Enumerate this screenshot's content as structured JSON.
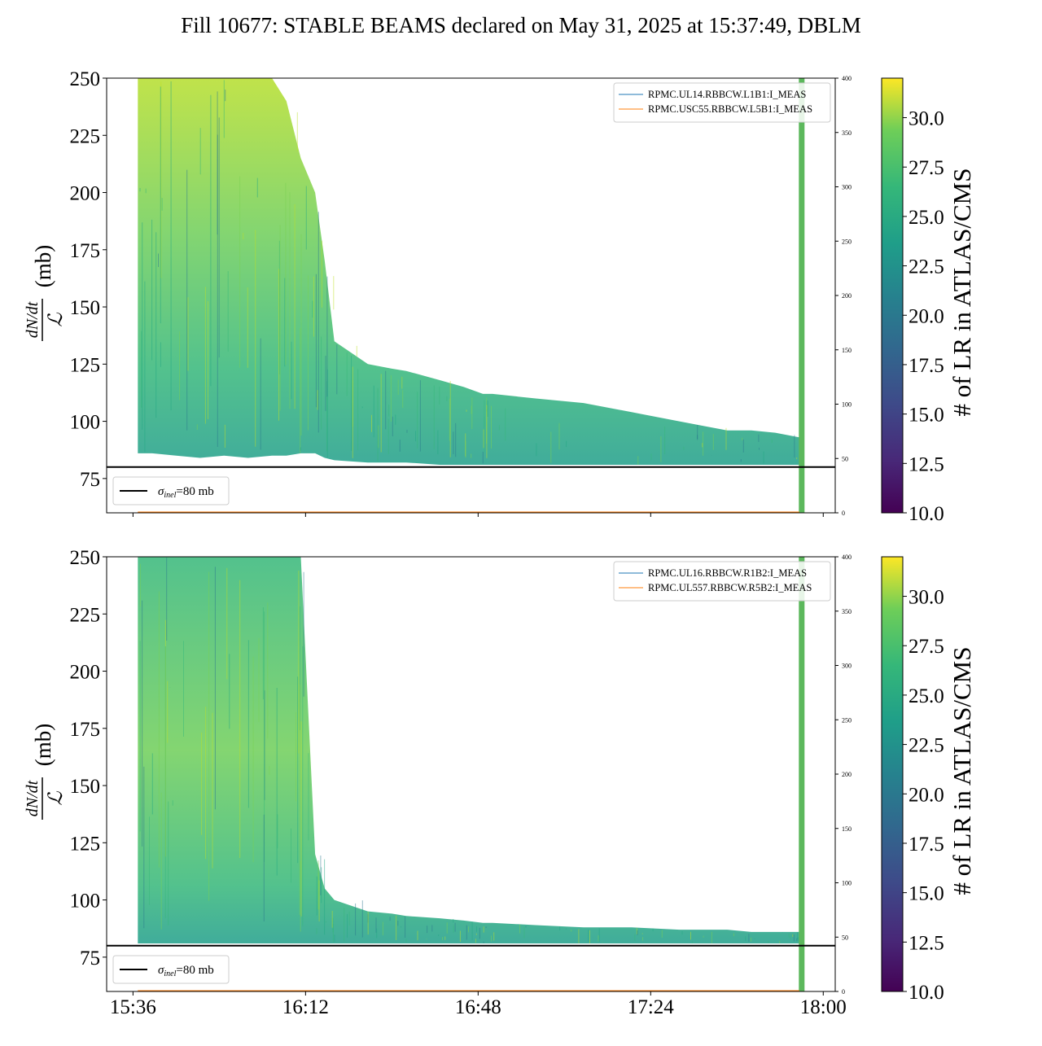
{
  "figure": {
    "title": "Fill 10677: STABLE BEAMS declared on May 31, 2025 at 15:37:49, DBLM"
  },
  "chart_data": [
    {
      "type": "line",
      "title": "",
      "ylabel_numerator": "dN/dt",
      "ylabel_denominator": "ℒ",
      "ylabel_unit": "(mb)",
      "x_ticks": [
        "15:36",
        "16:12",
        "16:48",
        "17:24",
        "18:00"
      ],
      "x_tick_minutes": [
        936,
        972,
        1008,
        1044,
        1080
      ],
      "xlim_minutes": [
        930.5,
        1082.5
      ],
      "tick_labels_shown": false,
      "ylim": [
        60,
        250
      ],
      "y_ticks": [
        75,
        100,
        125,
        150,
        175,
        200,
        225,
        250
      ],
      "y2lim": [
        0,
        400
      ],
      "y2_ticks": [
        0,
        50,
        100,
        150,
        200,
        250,
        300,
        350,
        400
      ],
      "reference_line": {
        "y": 80,
        "label": "σinel=80 mb",
        "label_sym": "σ",
        "label_sub": "inel",
        "label_rest": "=80 mb"
      },
      "legend": [
        {
          "name": "RPMC.UL14.RBBCW.L1B1:I_MEAS",
          "color": "#1f77b4"
        },
        {
          "name": "RPMC.USC55.RBBCW.L5B1:I_MEAS",
          "color": "#ff7f0e"
        }
      ],
      "legend_position": "upper-right",
      "marker_band_minute": 1075.5,
      "envelope_minutes": [
        937,
        940,
        945,
        950,
        955,
        960,
        965,
        968,
        971,
        974,
        976,
        978,
        985,
        990,
        993,
        1000,
        1005,
        1009,
        1011,
        1020,
        1030,
        1040,
        1050,
        1055,
        1060,
        1065,
        1070,
        1075
      ],
      "envelope_upper": [
        250,
        250,
        250,
        250,
        250,
        250,
        250,
        240,
        215,
        200,
        170,
        135,
        125,
        123,
        122,
        118,
        115,
        112,
        112,
        110,
        108,
        104,
        100,
        98,
        96,
        96,
        95,
        93
      ],
      "envelope_lower": [
        86,
        86,
        85,
        84,
        85,
        84,
        85,
        85,
        86,
        86,
        84,
        83,
        82,
        82,
        82,
        81,
        81,
        81,
        81,
        81,
        81,
        81,
        81,
        81,
        81,
        81,
        81,
        81
      ],
      "colorbar": {
        "label": "# of LR in ATLAS/CMS",
        "range": [
          10,
          32
        ],
        "ticks": [
          "10.0",
          "12.5",
          "15.0",
          "17.5",
          "20.0",
          "22.5",
          "25.0",
          "27.5",
          "30.0"
        ],
        "colormap": "viridis"
      }
    },
    {
      "type": "line",
      "title": "",
      "ylabel_numerator": "dN/dt",
      "ylabel_denominator": "ℒ",
      "ylabel_unit": "(mb)",
      "x_ticks": [
        "15:36",
        "16:12",
        "16:48",
        "17:24",
        "18:00"
      ],
      "x_tick_minutes": [
        936,
        972,
        1008,
        1044,
        1080
      ],
      "xlim_minutes": [
        930.5,
        1082.5
      ],
      "tick_labels_shown": true,
      "ylim": [
        60,
        250
      ],
      "y_ticks": [
        75,
        100,
        125,
        150,
        175,
        200,
        225,
        250
      ],
      "y2lim": [
        0,
        400
      ],
      "y2_ticks": [
        0,
        50,
        100,
        150,
        200,
        250,
        300,
        350,
        400
      ],
      "reference_line": {
        "y": 80,
        "label": "σinel=80 mb",
        "label_sym": "σ",
        "label_sub": "inel",
        "label_rest": "=80 mb"
      },
      "legend": [
        {
          "name": "RPMC.UL16.RBBCW.R1B2:I_MEAS",
          "color": "#1f77b4"
        },
        {
          "name": "RPMC.UL557.RBBCW.R5B2:I_MEAS",
          "color": "#ff7f0e"
        }
      ],
      "legend_position": "upper-right",
      "marker_band_minute": 1075.5,
      "envelope_minutes": [
        937,
        940,
        945,
        950,
        955,
        960,
        965,
        968,
        971,
        974,
        976,
        978,
        985,
        990,
        993,
        1000,
        1005,
        1009,
        1011,
        1020,
        1030,
        1040,
        1050,
        1055,
        1060,
        1065,
        1070,
        1075
      ],
      "envelope_upper": [
        250,
        250,
        250,
        250,
        250,
        250,
        250,
        250,
        250,
        120,
        105,
        100,
        95,
        94,
        93,
        92,
        91,
        90,
        90,
        89,
        88,
        88,
        87,
        87,
        87,
        86,
        86,
        86
      ],
      "envelope_lower": [
        81,
        81,
        81,
        81,
        81,
        81,
        81,
        81,
        81,
        81,
        81,
        81,
        81,
        81,
        81,
        81,
        81,
        81,
        81,
        81,
        81,
        81,
        81,
        81,
        81,
        81,
        81,
        81
      ],
      "colorbar": {
        "label": "# of LR in ATLAS/CMS",
        "range": [
          10,
          32
        ],
        "ticks": [
          "10.0",
          "12.5",
          "15.0",
          "17.5",
          "20.0",
          "22.5",
          "25.0",
          "27.5",
          "30.0"
        ],
        "colormap": "viridis"
      }
    }
  ]
}
